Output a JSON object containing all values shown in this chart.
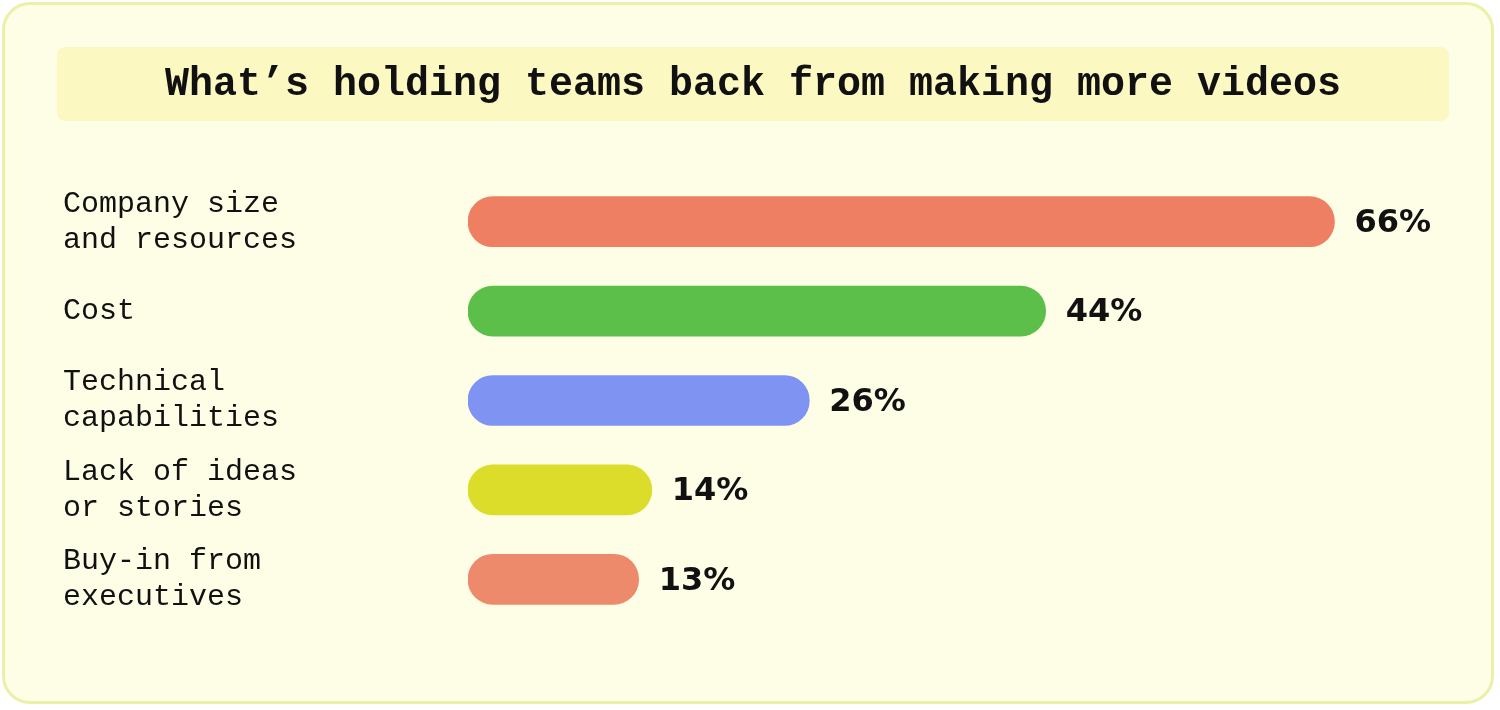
{
  "chart_data": {
    "type": "bar",
    "orientation": "horizontal",
    "title": "What’s holding teams back from making more videos",
    "categories": [
      "Company size and resources",
      "Cost",
      "Technical capabilities",
      "Lack of ideas or stories",
      "Buy-in from executives"
    ],
    "values": [
      66,
      44,
      26,
      14,
      13
    ],
    "colors": [
      "#ee7f62",
      "#5cbf4a",
      "#7f93f2",
      "#dcdc2a",
      "#ee8a6c"
    ],
    "data_labels": true,
    "value_labels": [
      "66%",
      "44%",
      "26%",
      "14%",
      "13%"
    ],
    "legend": false
  }
}
